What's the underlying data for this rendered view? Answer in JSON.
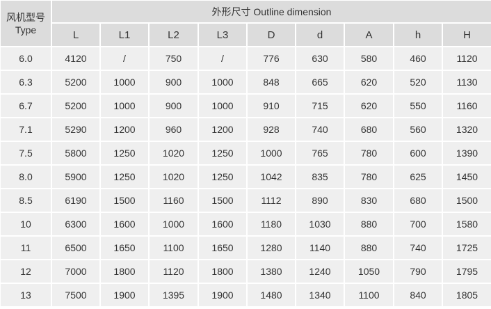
{
  "header": {
    "type_label_cn": "风机型号",
    "type_label_en": "Type",
    "group_label": "外形尺寸 Outline dimension",
    "columns": [
      "L",
      "L1",
      "L2",
      "L3",
      "D",
      "d",
      "A",
      "h",
      "H"
    ]
  },
  "rows": [
    [
      "6.0",
      "4120",
      "/",
      "750",
      "/",
      "776",
      "630",
      "580",
      "460",
      "1120"
    ],
    [
      "6.3",
      "5200",
      "1000",
      "900",
      "1000",
      "848",
      "665",
      "620",
      "520",
      "1130"
    ],
    [
      "6.7",
      "5200",
      "1000",
      "900",
      "1000",
      "910",
      "715",
      "620",
      "550",
      "1160"
    ],
    [
      "7.1",
      "5290",
      "1200",
      "960",
      "1200",
      "928",
      "740",
      "680",
      "560",
      "1320"
    ],
    [
      "7.5",
      "5800",
      "1250",
      "1020",
      "1250",
      "1000",
      "765",
      "780",
      "600",
      "1390"
    ],
    [
      "8.0",
      "5900",
      "1250",
      "1020",
      "1250",
      "1042",
      "835",
      "780",
      "625",
      "1450"
    ],
    [
      "8.5",
      "6190",
      "1500",
      "1160",
      "1500",
      "1112",
      "890",
      "830",
      "680",
      "1500"
    ],
    [
      "10",
      "6300",
      "1600",
      "1000",
      "1600",
      "1180",
      "1030",
      "880",
      "700",
      "1580"
    ],
    [
      "11",
      "6500",
      "1650",
      "1100",
      "1650",
      "1280",
      "1140",
      "880",
      "740",
      "1725"
    ],
    [
      "12",
      "7000",
      "1800",
      "1120",
      "1800",
      "1380",
      "1240",
      "1050",
      "790",
      "1795"
    ],
    [
      "13",
      "7500",
      "1900",
      "1395",
      "1900",
      "1480",
      "1340",
      "1100",
      "840",
      "1805"
    ]
  ]
}
